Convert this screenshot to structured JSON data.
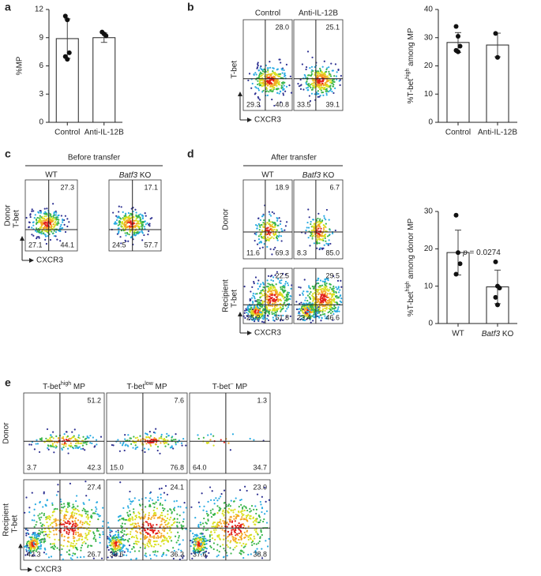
{
  "italic_text": [
    "Batf3",
    "p"
  ],
  "chart_data": [
    {
      "panel": "a",
      "type": "bar",
      "ylabel": "%MP",
      "categories": [
        "Control",
        "Anti-IL-12B"
      ],
      "values": [
        8.9,
        9.0
      ],
      "errors": [
        2.1,
        0.5
      ],
      "points": [
        [
          11.3,
          10.9,
          7.4,
          7.0,
          6.7
        ],
        [
          9.6,
          9.4,
          9.2
        ]
      ],
      "ylim": [
        0,
        12
      ],
      "yticks": [
        0,
        3,
        6,
        9,
        12
      ],
      "color": "#ffffff"
    },
    {
      "type": "bar",
      "ylabel": [
        {
          "text": "%T-bet"
        },
        {
          "text": "high",
          "sup": true
        },
        {
          "text": " among MP"
        }
      ],
      "categories": [
        "Control",
        "Anti-IL-12B"
      ],
      "values": [
        28.3,
        27.4
      ],
      "errors": [
        3.5,
        4.2
      ],
      "points": [
        [
          34,
          30.5,
          27,
          25.5,
          25
        ],
        [
          31.5,
          23
        ]
      ],
      "ylim": [
        0,
        40
      ],
      "yticks": [
        0,
        10,
        20,
        30,
        40
      ],
      "color": "#ffffff"
    },
    {
      "type": "bar",
      "ylabel": [
        {
          "text": "%T-bet"
        },
        {
          "text": "high",
          "sup": true
        },
        {
          "text": " among donor MP"
        }
      ],
      "categories": [
        "WT",
        "Batf3 KO"
      ],
      "values": [
        19,
        9.8
      ],
      "errors": [
        6,
        4.5
      ],
      "points": [
        [
          29,
          19,
          16,
          13.2
        ],
        [
          16.5,
          10,
          9.5,
          7,
          5
        ]
      ],
      "ylim": [
        0,
        30
      ],
      "yticks": [
        0,
        10,
        20,
        30
      ],
      "color": "#ffffff",
      "annotation": "p = 0.0274"
    }
  ],
  "flow_panels": [
    {
      "panel": "b",
      "columns": [
        "Control",
        "Anti-IL-12B"
      ],
      "y_label": "T-bet",
      "x_label": "CXCR3",
      "rows": [
        {
          "plots": [
            {
              "top_right": "28.0",
              "bottom_left": "29.3",
              "bottom_right": "40.8"
            },
            {
              "top_right": "25.1",
              "bottom_left": "33.5",
              "bottom_right": "39.1"
            }
          ]
        }
      ]
    },
    {
      "panel": "c",
      "title": "Before transfer",
      "columns": [
        "WT",
        "Batf3 KO"
      ],
      "y_label": "T-bet",
      "x_label": "CXCR3",
      "rows": [
        {
          "label": "Donor",
          "plots": [
            {
              "top_right": "27.3",
              "bottom_left": "27.1",
              "bottom_right": "44.1"
            },
            {
              "top_right": "17.1",
              "bottom_left": "24.5",
              "bottom_right": "57.7"
            }
          ]
        }
      ]
    },
    {
      "panel": "d",
      "title": "After transfer",
      "columns": [
        "WT",
        "Batf3 KO"
      ],
      "y_label": "T-bet",
      "x_label": "CXCR3",
      "rows": [
        {
          "label": "Donor",
          "plots": [
            {
              "top_right": "18.9",
              "bottom_left": "11.6",
              "bottom_right": "69.3"
            },
            {
              "top_right": "6.7",
              "bottom_left": "8.3",
              "bottom_right": "85.0"
            }
          ]
        },
        {
          "label": "Recipient",
          "plots": [
            {
              "top_right": "22.5",
              "bottom_left": "25.2",
              "bottom_right": "51.8"
            },
            {
              "top_right": "29.5",
              "bottom_left": "23.4",
              "bottom_right": "46.6"
            }
          ]
        }
      ]
    },
    {
      "panel": "e",
      "columns": [
        [
          {
            "text": "T-bet"
          },
          {
            "text": "high",
            "sup": true
          },
          {
            "text": " MP"
          }
        ],
        [
          {
            "text": "T-bet"
          },
          {
            "text": "low",
            "sup": true
          },
          {
            "text": " MP"
          }
        ],
        [
          {
            "text": "T-bet"
          },
          {
            "text": "–",
            "sup": true
          },
          {
            "text": " MP"
          }
        ]
      ],
      "y_label": "T-bet",
      "x_label": "CXCR3",
      "rows": [
        {
          "label": "Donor",
          "plots": [
            {
              "top_right": "51.2",
              "bottom_left": "3.7",
              "bottom_right": "42.3"
            },
            {
              "top_right": "7.6",
              "bottom_left": "15.0",
              "bottom_right": "76.8"
            },
            {
              "top_right": "1.3",
              "bottom_left": "64.0",
              "bottom_right": "34.7"
            }
          ]
        },
        {
          "label": "Recipient",
          "plots": [
            {
              "top_right": "27.4",
              "bottom_left": "42.3",
              "bottom_right": "26.7"
            },
            {
              "top_right": "24.1",
              "bottom_left": "38.6",
              "bottom_right": "36.3"
            },
            {
              "top_right": "23.0",
              "bottom_left": "37.6",
              "bottom_right": "38.8"
            }
          ]
        }
      ]
    }
  ]
}
